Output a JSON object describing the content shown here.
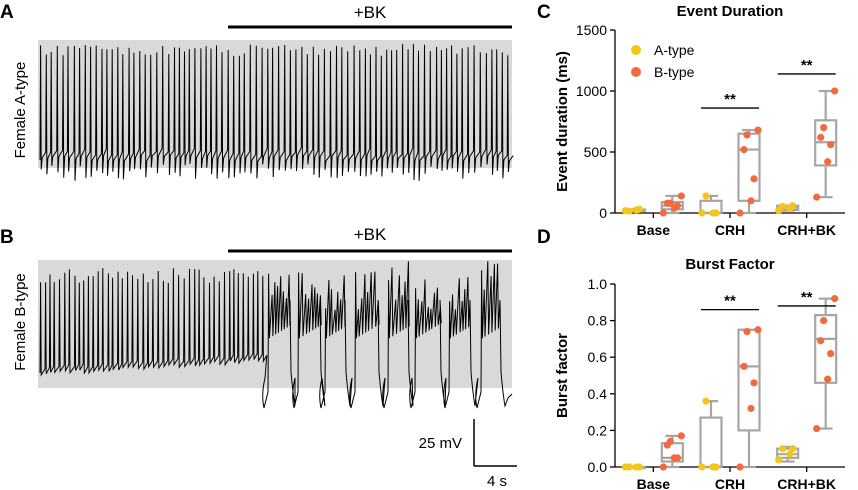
{
  "figure": {
    "panel_a": {
      "letter": "A",
      "ylabel": "Female A-type",
      "treatment": "+BK"
    },
    "panel_b": {
      "letter": "B",
      "ylabel": "Female B-type",
      "treatment": "+BK",
      "scale_voltage": "25 mV",
      "scale_time": "4 s"
    }
  },
  "colors": {
    "a_type": "#f5c518",
    "b_type": "#f26a3d",
    "box": "#a6a6a6",
    "trace_bg": "#d9d9d9",
    "trace": "#000000"
  },
  "chart_data": [
    {
      "panel": "C",
      "type": "box",
      "title": "Event Duration",
      "xlabel": "",
      "ylabel": "Event duration (ms)",
      "ylim": [
        0,
        1500
      ],
      "yticks": [
        0,
        500,
        1000,
        1500
      ],
      "ytick_labels": [
        "0",
        "500",
        "1000",
        "1500"
      ],
      "categories": [
        "Base",
        "CRH",
        "CRH+BK"
      ],
      "legend": [
        "A-type",
        "B-type"
      ],
      "series": [
        {
          "name": "A-type",
          "points": [
            [
              20,
              25,
              30,
              15
            ],
            [
              0,
              0,
              0,
              140
            ],
            [
              20,
              40,
              60,
              55
            ]
          ],
          "boxes": [
            {
              "min": 15,
              "q1": 15,
              "median": 20,
              "q3": 28,
              "max": 30
            },
            {
              "min": 0,
              "q1": 0,
              "median": 0,
              "q3": 100,
              "max": 140
            },
            {
              "min": 20,
              "q1": 25,
              "median": 45,
              "q3": 60,
              "max": 60
            }
          ]
        },
        {
          "name": "B-type",
          "points": [
            [
              0,
              40,
              60,
              80,
              80,
              140
            ],
            [
              0,
              100,
              280,
              520,
              640,
              680
            ],
            [
              130,
              420,
              560,
              620,
              700,
              1000
            ]
          ],
          "boxes": [
            {
              "min": 0,
              "q1": 30,
              "median": 60,
              "q3": 90,
              "max": 140
            },
            {
              "min": 0,
              "q1": 100,
              "median": 520,
              "q3": 650,
              "max": 680
            },
            {
              "min": 130,
              "q1": 390,
              "median": 580,
              "q3": 760,
              "max": 1000
            }
          ]
        }
      ],
      "significance": [
        {
          "category": "CRH",
          "label": "**",
          "y": 860
        },
        {
          "category": "CRH+BK",
          "label": "**",
          "y": 1140
        }
      ]
    },
    {
      "panel": "D",
      "type": "box",
      "title": "Burst Factor",
      "xlabel": "",
      "ylabel": "Burst factor",
      "ylim": [
        0,
        1.0
      ],
      "yticks": [
        0,
        0.2,
        0.4,
        0.6,
        0.8,
        1.0
      ],
      "ytick_labels": [
        "0.0",
        "0.2",
        "0.4",
        "0.6",
        "0.8",
        "1.0"
      ],
      "categories": [
        "Base",
        "CRH",
        "CRH+BK"
      ],
      "legend": [],
      "series": [
        {
          "name": "A-type",
          "points": [
            [
              0,
              0,
              0,
              0
            ],
            [
              0,
              0,
              0,
              0.36
            ],
            [
              0.04,
              0.07,
              0.1,
              0.1
            ]
          ],
          "boxes": [
            {
              "min": 0,
              "q1": 0,
              "median": 0,
              "q3": 0,
              "max": 0
            },
            {
              "min": 0,
              "q1": 0,
              "median": 0,
              "q3": 0.27,
              "max": 0.36
            },
            {
              "min": 0.03,
              "q1": 0.05,
              "median": 0.07,
              "q3": 0.1,
              "max": 0.11
            }
          ]
        },
        {
          "name": "B-type",
          "points": [
            [
              0,
              0.05,
              0.05,
              0.12,
              0.14,
              0.17
            ],
            [
              0,
              0.32,
              0.46,
              0.55,
              0.74,
              0.75
            ],
            [
              0.21,
              0.48,
              0.62,
              0.69,
              0.8,
              0.92
            ]
          ],
          "boxes": [
            {
              "min": 0,
              "q1": 0.03,
              "median": 0.05,
              "q3": 0.13,
              "max": 0.17
            },
            {
              "min": 0,
              "q1": 0.2,
              "median": 0.55,
              "q3": 0.75,
              "max": 0.75
            },
            {
              "min": 0.21,
              "q1": 0.46,
              "median": 0.7,
              "q3": 0.83,
              "max": 0.92
            }
          ]
        }
      ],
      "significance": [
        {
          "category": "CRH",
          "label": "**",
          "y": 0.86
        },
        {
          "category": "CRH+BK",
          "label": "**",
          "y": 0.88
        }
      ]
    }
  ]
}
